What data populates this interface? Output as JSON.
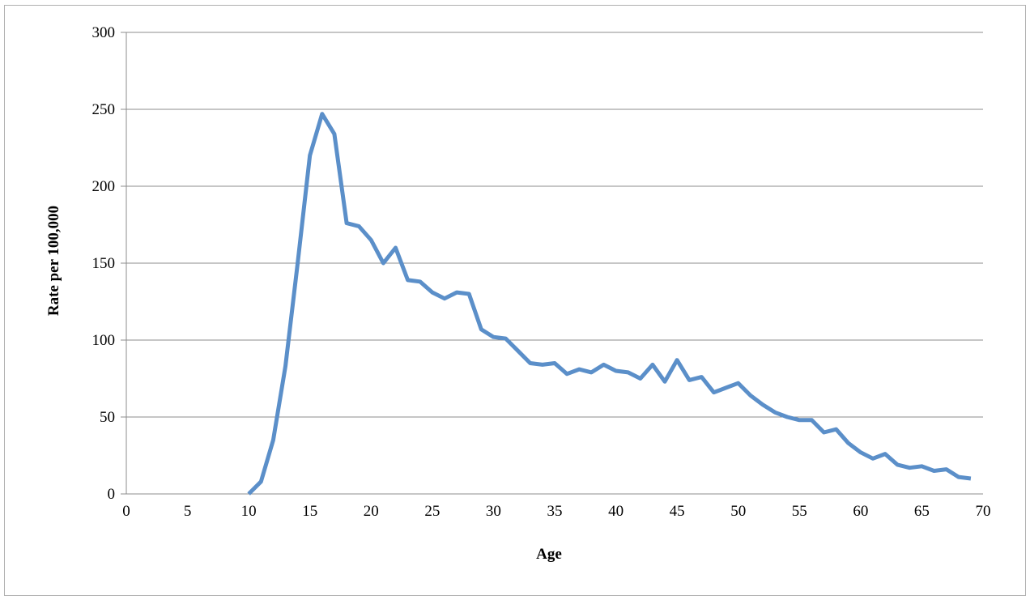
{
  "chart_data": {
    "type": "line",
    "title": "",
    "xlabel": "Age",
    "ylabel": "Rate per 100,000",
    "xlim": [
      0,
      70
    ],
    "ylim": [
      0,
      300
    ],
    "x_ticks": [
      "0",
      "5",
      "10",
      "15",
      "20",
      "25",
      "30",
      "35",
      "40",
      "45",
      "50",
      "55",
      "60",
      "65",
      "70"
    ],
    "y_ticks": [
      "0",
      "50",
      "100",
      "150",
      "200",
      "250",
      "300"
    ],
    "grid": "horizontal",
    "legend": "none",
    "series_color": "#5b8fc9",
    "series": [
      {
        "x": [
          10,
          11,
          12,
          13,
          14,
          15,
          16,
          17,
          18,
          19,
          20,
          21,
          22,
          23,
          24,
          25,
          26,
          27,
          28,
          29,
          30,
          31,
          32,
          33,
          34,
          35,
          36,
          37,
          38,
          39,
          40,
          41,
          42,
          43,
          44,
          45,
          46,
          47,
          48,
          49,
          50,
          51,
          52,
          53,
          54,
          55,
          56,
          57,
          58,
          59,
          60,
          61,
          62,
          63,
          64,
          65,
          66,
          67,
          68,
          69
        ],
        "values": [
          0,
          8,
          35,
          83,
          150,
          220,
          247,
          234,
          176,
          174,
          165,
          150,
          160,
          139,
          138,
          131,
          127,
          131,
          130,
          107,
          102,
          101,
          93,
          85,
          84,
          85,
          78,
          81,
          79,
          84,
          80,
          79,
          75,
          84,
          73,
          87,
          74,
          76,
          66,
          69,
          72,
          64,
          58,
          53,
          50,
          48,
          48,
          40,
          42,
          33,
          27,
          23,
          26,
          19,
          17,
          18,
          15,
          16,
          11,
          10
        ]
      }
    ]
  }
}
